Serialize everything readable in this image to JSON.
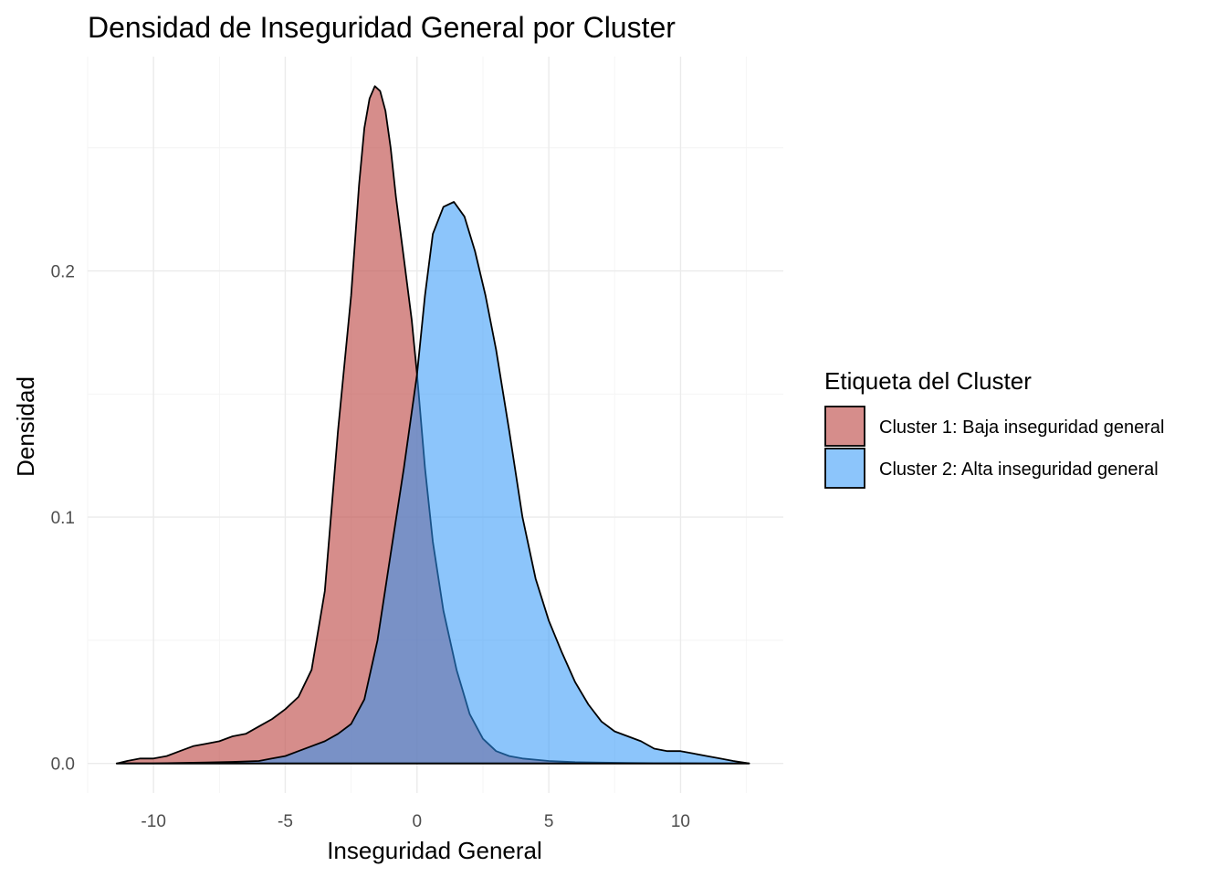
{
  "chart_data": {
    "type": "area",
    "title": "Densidad de Inseguridad General por Cluster",
    "xlabel": "Inseguridad General",
    "ylabel": "Densidad",
    "xlim": [
      -12.5,
      13.9
    ],
    "ylim": [
      -0.012,
      0.287
    ],
    "x_ticks": [
      -10,
      -5,
      0,
      5,
      10
    ],
    "x_tick_labels": [
      "-10",
      "-5",
      "0",
      "5",
      "10"
    ],
    "y_ticks": [
      0.0,
      0.1,
      0.2
    ],
    "y_tick_labels": [
      "0.0",
      "0.1",
      "0.2"
    ],
    "grid": true,
    "legend": {
      "title": "Etiqueta del Cluster",
      "position": "right"
    },
    "series": [
      {
        "name": "Cluster 1: Baja inseguridad general",
        "color": "#c0504d",
        "fill_opacity": 0.65,
        "x": [
          -11.4,
          -11.0,
          -10.5,
          -10.0,
          -9.5,
          -9.0,
          -8.5,
          -8.0,
          -7.5,
          -7.0,
          -6.5,
          -6.0,
          -5.5,
          -5.0,
          -4.5,
          -4.0,
          -3.5,
          -3.0,
          -2.5,
          -2.2,
          -2.0,
          -1.8,
          -1.6,
          -1.4,
          -1.2,
          -1.0,
          -0.8,
          -0.5,
          -0.2,
          0.0,
          0.3,
          0.6,
          1.0,
          1.5,
          2.0,
          2.5,
          3.0,
          3.5,
          4.0,
          5.0,
          6.0,
          7.0,
          8.0,
          9.0,
          10.0,
          11.0,
          12.0,
          12.6
        ],
        "values": [
          0.0,
          0.001,
          0.002,
          0.002,
          0.003,
          0.005,
          0.007,
          0.008,
          0.009,
          0.011,
          0.012,
          0.015,
          0.018,
          0.022,
          0.027,
          0.038,
          0.07,
          0.135,
          0.19,
          0.235,
          0.258,
          0.27,
          0.275,
          0.273,
          0.265,
          0.25,
          0.23,
          0.205,
          0.18,
          0.158,
          0.12,
          0.09,
          0.062,
          0.038,
          0.02,
          0.01,
          0.005,
          0.003,
          0.002,
          0.001,
          0.0005,
          0.0003,
          0.0002,
          0.0001,
          0.0001,
          0.0,
          0.0,
          0.0
        ]
      },
      {
        "name": "Cluster 2: Alta inseguridad general",
        "color": "#2e95f8",
        "fill_opacity": 0.55,
        "x": [
          -11.4,
          -10.0,
          -9.0,
          -8.0,
          -7.0,
          -6.0,
          -5.5,
          -5.0,
          -4.5,
          -4.0,
          -3.5,
          -3.0,
          -2.5,
          -2.0,
          -1.5,
          -1.0,
          -0.5,
          0.0,
          0.3,
          0.6,
          1.0,
          1.4,
          1.8,
          2.2,
          2.6,
          3.0,
          3.5,
          4.0,
          4.5,
          5.0,
          5.5,
          6.0,
          6.5,
          7.0,
          7.5,
          8.0,
          8.5,
          9.0,
          9.5,
          10.0,
          10.5,
          11.0,
          11.5,
          12.0,
          12.6
        ],
        "values": [
          0.0,
          0.0,
          0.0002,
          0.0004,
          0.0006,
          0.001,
          0.002,
          0.003,
          0.005,
          0.007,
          0.009,
          0.012,
          0.016,
          0.026,
          0.05,
          0.085,
          0.12,
          0.158,
          0.19,
          0.215,
          0.226,
          0.228,
          0.222,
          0.208,
          0.19,
          0.168,
          0.135,
          0.1,
          0.075,
          0.058,
          0.045,
          0.033,
          0.024,
          0.017,
          0.013,
          0.011,
          0.009,
          0.006,
          0.005,
          0.005,
          0.004,
          0.003,
          0.002,
          0.001,
          0.0
        ]
      }
    ]
  }
}
